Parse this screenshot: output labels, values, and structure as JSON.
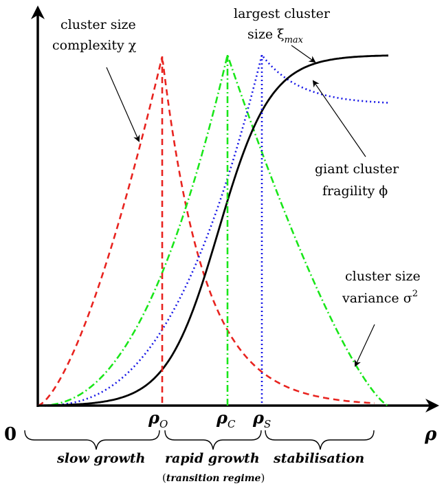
{
  "axes": {
    "origin_label": "0",
    "x_axis_label": "ρ"
  },
  "markers": {
    "rho_o": {
      "base": "ρ",
      "sub": "O"
    },
    "rho_c": {
      "base": "ρ",
      "sub": "C"
    },
    "rho_s": {
      "base": "ρ",
      "sub": "S"
    }
  },
  "curves": {
    "complexity": {
      "line1": "cluster size",
      "line2": "complexity χ",
      "color": "#e8231f"
    },
    "variance": {
      "line1": "cluster size",
      "line2_text": "variance σ",
      "line2_sup": "2",
      "color": "#19e619"
    },
    "fragility": {
      "line1": "giant cluster",
      "line2": "fragility ϕ",
      "color": "#1515e6"
    },
    "largest": {
      "line1": "largest cluster",
      "line2_text": "size ξ",
      "line2_sub": "max",
      "color": "#000000"
    }
  },
  "phases": {
    "slow": "slow growth",
    "rapid": "rapid growth",
    "stabilisation": "stabilisation",
    "transition_open": "(",
    "transition": "transition regime",
    "transition_close": ")"
  }
}
